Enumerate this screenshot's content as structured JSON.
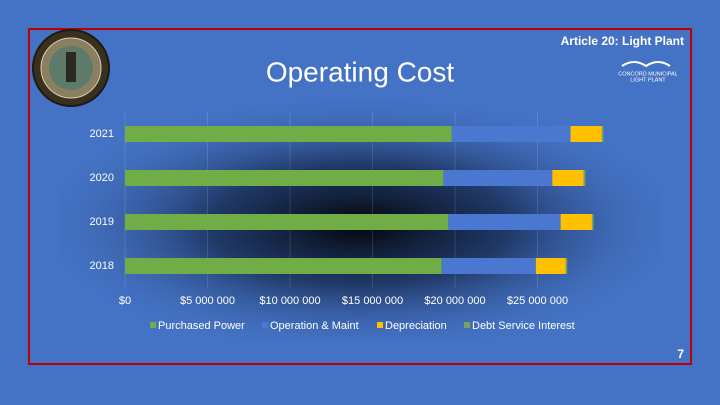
{
  "header": "Article 20: Light Plant",
  "logo_text": [
    "CONCORD MUNICIPAL",
    "LIGHT PLANT"
  ],
  "page_number": "7",
  "chart_data": {
    "type": "stacked-barh",
    "title": "Operating Cost",
    "categories": [
      "2021",
      "2020",
      "2019",
      "2018"
    ],
    "series": [
      {
        "name": "Purchased Power",
        "color": "#70ad47",
        "values": [
          19800000,
          19300000,
          19600000,
          19200000
        ]
      },
      {
        "name": "Operation & Maint",
        "color": "#4a78d0",
        "values": [
          7200000,
          6600000,
          6800000,
          5700000
        ]
      },
      {
        "name": "Depreciation",
        "color": "#ffc000",
        "values": [
          1900000,
          1900000,
          1900000,
          1800000
        ]
      },
      {
        "name": "Debt Service Interest",
        "color": "#7f9f5f",
        "values": [
          100000,
          100000,
          100000,
          100000
        ]
      }
    ],
    "xlim": [
      0,
      30000000
    ],
    "xticks": [
      {
        "value": 0,
        "label": "$0"
      },
      {
        "value": 5000000,
        "label": "$5 000 000"
      },
      {
        "value": 10000000,
        "label": "$10 000 000"
      },
      {
        "value": 15000000,
        "label": "$15 000 000"
      },
      {
        "value": 20000000,
        "label": "$20 000 000"
      },
      {
        "value": 25000000,
        "label": "$25 000 000"
      }
    ],
    "grid": true,
    "legend": "bottom"
  }
}
